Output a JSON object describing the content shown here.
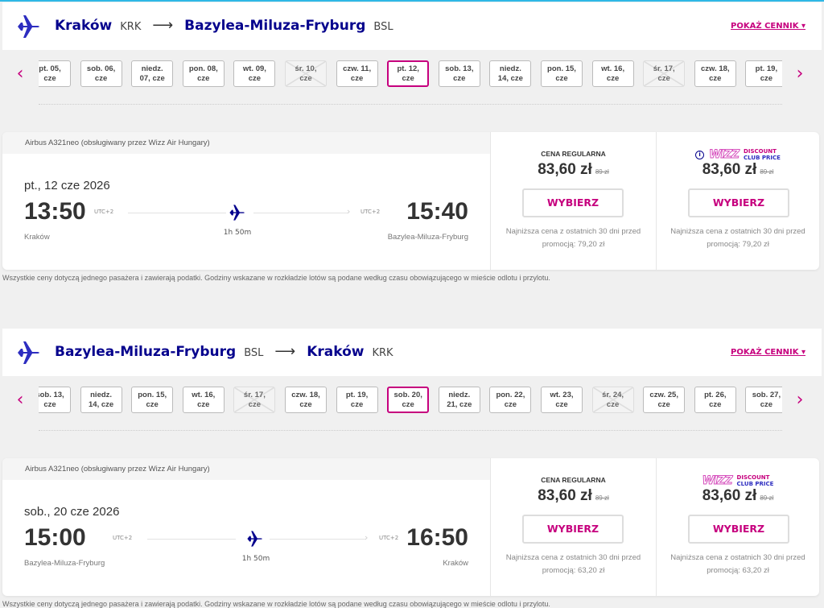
{
  "colors": {
    "accent": "#c6007e",
    "brand": "#06038d"
  },
  "price_list_label": "POKAŻ CENNIK",
  "disclaimer": "Wszystkie ceny dotyczą jednego pasażera i zawierają podatki. Godziny wskazane w rozkładzie lotów są podane według czasu obowiązującego w mieście odlotu i przylotu.",
  "flights": [
    {
      "from_city": "Kraków",
      "from_code": "KRK",
      "to_city": "Bazylea-Miluza-Fryburg",
      "to_code": "BSL",
      "dates": [
        {
          "l1": "pt. 05,",
          "l2": "cze"
        },
        {
          "l1": "sob. 06,",
          "l2": "cze"
        },
        {
          "l1": "niedz.",
          "l2": "07, cze"
        },
        {
          "l1": "pon. 08,",
          "l2": "cze"
        },
        {
          "l1": "wt. 09,",
          "l2": "cze"
        },
        {
          "l1": "śr. 10,",
          "l2": "cze",
          "disabled": true
        },
        {
          "l1": "czw. 11,",
          "l2": "cze"
        },
        {
          "l1": "pt. 12,",
          "l2": "cze",
          "selected": true
        },
        {
          "l1": "sob. 13,",
          "l2": "cze"
        },
        {
          "l1": "niedz.",
          "l2": "14, cze"
        },
        {
          "l1": "pon. 15,",
          "l2": "cze"
        },
        {
          "l1": "wt. 16,",
          "l2": "cze"
        },
        {
          "l1": "śr. 17,",
          "l2": "cze",
          "disabled": true
        },
        {
          "l1": "czw. 18,",
          "l2": "cze"
        },
        {
          "l1": "pt. 19,",
          "l2": "cze"
        }
      ],
      "aircraft": "Airbus A321neo (obsługiwany przez Wizz Air Hungary)",
      "date": "pt., 12 cze 2026",
      "dep_time": "13:50",
      "arr_time": "15:40",
      "dep_utc": "UTC+2",
      "arr_utc": "UTC+2",
      "duration": "1h 50m",
      "dep_place": "Kraków",
      "arr_place": "Bazylea-Miluza-Fryburg",
      "regular": {
        "label": "CENA REGULARNA",
        "price": "83,60 zł",
        "old": "89 zł",
        "button": "WYBIERZ",
        "note": "Najniższa cena z ostatnich 30 dni przed promocją: 79,20 zł"
      },
      "club": {
        "logo_word": "WIZZ",
        "logo_l1": "DISCOUNT",
        "logo_l2": "CLUB PRICE",
        "price": "83,60 zł",
        "old": "89 zł",
        "button": "WYBIERZ",
        "note": "Najniższa cena z ostatnich 30 dni przed promocją: 79,20 zł"
      }
    },
    {
      "from_city": "Bazylea-Miluza-Fryburg",
      "from_code": "BSL",
      "to_city": "Kraków",
      "to_code": "KRK",
      "dates": [
        {
          "l1": "sob. 13,",
          "l2": "cze"
        },
        {
          "l1": "niedz.",
          "l2": "14, cze"
        },
        {
          "l1": "pon. 15,",
          "l2": "cze"
        },
        {
          "l1": "wt. 16,",
          "l2": "cze"
        },
        {
          "l1": "śr. 17,",
          "l2": "cze",
          "disabled": true
        },
        {
          "l1": "czw. 18,",
          "l2": "cze"
        },
        {
          "l1": "pt. 19,",
          "l2": "cze"
        },
        {
          "l1": "sob. 20,",
          "l2": "cze",
          "selected": true
        },
        {
          "l1": "niedz.",
          "l2": "21, cze"
        },
        {
          "l1": "pon. 22,",
          "l2": "cze"
        },
        {
          "l1": "wt. 23,",
          "l2": "cze"
        },
        {
          "l1": "śr. 24,",
          "l2": "cze",
          "disabled": true
        },
        {
          "l1": "czw. 25,",
          "l2": "cze"
        },
        {
          "l1": "pt. 26,",
          "l2": "cze"
        },
        {
          "l1": "sob. 27,",
          "l2": "cze"
        }
      ],
      "aircraft": "Airbus A321neo (obsługiwany przez Wizz Air Hungary)",
      "date": "sob., 20 cze 2026",
      "dep_time": "15:00",
      "arr_time": "16:50",
      "dep_utc": "UTC+2",
      "arr_utc": "UTC+2",
      "duration": "1h 50m",
      "dep_place": "Bazylea-Miluza-Fryburg",
      "arr_place": "Kraków",
      "regular": {
        "label": "CENA REGULARNA",
        "price": "83,60 zł",
        "old": "89 zł",
        "button": "WYBIERZ",
        "note": "Najniższa cena z ostatnich 30 dni przed promocją: 63,20 zł"
      },
      "club": {
        "logo_word": "WIZZ",
        "logo_l1": "DISCOUNT",
        "logo_l2": "CLUB PRICE",
        "price": "83,60 zł",
        "old": "89 zł",
        "button": "WYBIERZ",
        "note": "Najniższa cena z ostatnich 30 dni przed promocją: 63,20 zł"
      }
    }
  ]
}
